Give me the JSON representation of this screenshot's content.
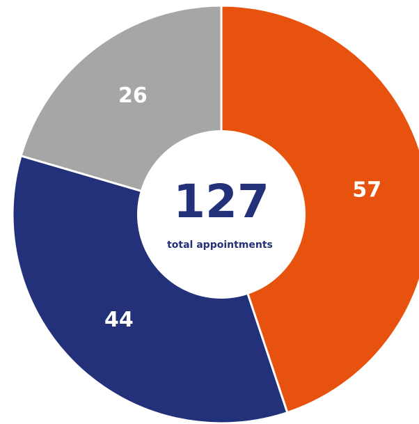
{
  "chart_data": {
    "type": "donut",
    "categories": [
      null,
      null,
      null
    ],
    "values": [
      57,
      44,
      26
    ],
    "colors": [
      "#e8520f",
      "#23307a",
      "#a6a6a6"
    ],
    "center_value": 127,
    "center_label": "total appointments"
  }
}
